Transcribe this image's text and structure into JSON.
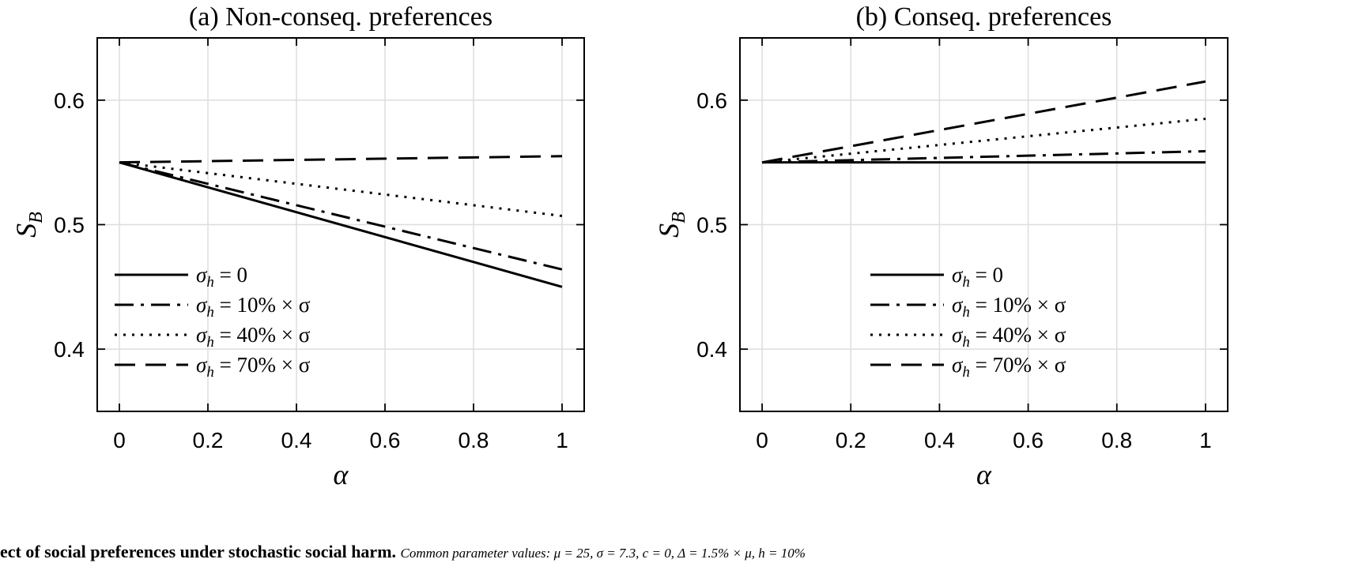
{
  "chart_data": [
    {
      "type": "line",
      "title": "(a) Non-conseq. preferences",
      "xlabel": "α",
      "ylabel": "S_B",
      "ylabel_main": "S",
      "ylabel_sub": "B",
      "xlim": [
        -0.05,
        1.05
      ],
      "ylim": [
        0.35,
        0.65
      ],
      "xticks": [
        0,
        0.2,
        0.4,
        0.6,
        0.8,
        1
      ],
      "xtick_labels": [
        "0",
        "0.2",
        "0.4",
        "0.6",
        "0.8",
        "1"
      ],
      "yticks": [
        0.4,
        0.5,
        0.6
      ],
      "ytick_labels": [
        "0.4",
        "0.5",
        "0.6"
      ],
      "grid": true,
      "legend_position": "lower-left",
      "series": [
        {
          "name": "σh = 0",
          "style": "solid",
          "x": [
            0,
            1
          ],
          "y": [
            0.55,
            0.45
          ]
        },
        {
          "name": "σh = 10% × σ",
          "style": "dashdot",
          "x": [
            0,
            1
          ],
          "y": [
            0.55,
            0.464
          ]
        },
        {
          "name": "σh = 40% × σ",
          "style": "dotted",
          "x": [
            0,
            1
          ],
          "y": [
            0.55,
            0.507
          ]
        },
        {
          "name": "σh = 70% × σ",
          "style": "dashed",
          "x": [
            0,
            1
          ],
          "y": [
            0.55,
            0.555
          ]
        }
      ]
    },
    {
      "type": "line",
      "title": "(b) Conseq. preferences",
      "xlabel": "α",
      "ylabel": "S_B",
      "ylabel_main": "S",
      "ylabel_sub": "B",
      "xlim": [
        -0.05,
        1.05
      ],
      "ylim": [
        0.35,
        0.65
      ],
      "xticks": [
        0,
        0.2,
        0.4,
        0.6,
        0.8,
        1
      ],
      "xtick_labels": [
        "0",
        "0.2",
        "0.4",
        "0.6",
        "0.8",
        "1"
      ],
      "yticks": [
        0.4,
        0.5,
        0.6
      ],
      "ytick_labels": [
        "0.4",
        "0.5",
        "0.6"
      ],
      "grid": true,
      "legend_position": "lower-center",
      "series": [
        {
          "name": "σh = 0",
          "style": "solid",
          "x": [
            0,
            1
          ],
          "y": [
            0.55,
            0.55
          ]
        },
        {
          "name": "σh = 10% × σ",
          "style": "dashdot",
          "x": [
            0,
            1
          ],
          "y": [
            0.55,
            0.559
          ]
        },
        {
          "name": "σh = 40% × σ",
          "style": "dotted",
          "x": [
            0,
            1
          ],
          "y": [
            0.55,
            0.585
          ]
        },
        {
          "name": "σh = 70% × σ",
          "style": "dashed",
          "x": [
            0,
            1
          ],
          "y": [
            0.55,
            0.615
          ]
        }
      ]
    }
  ],
  "caption": {
    "bold_text": "ect of social preferences under stochastic social harm.",
    "italic_text": "Common parameter values: μ = 25, σ = 7.3, c = 0, Δ = 1.5% × μ, h = 10%"
  }
}
